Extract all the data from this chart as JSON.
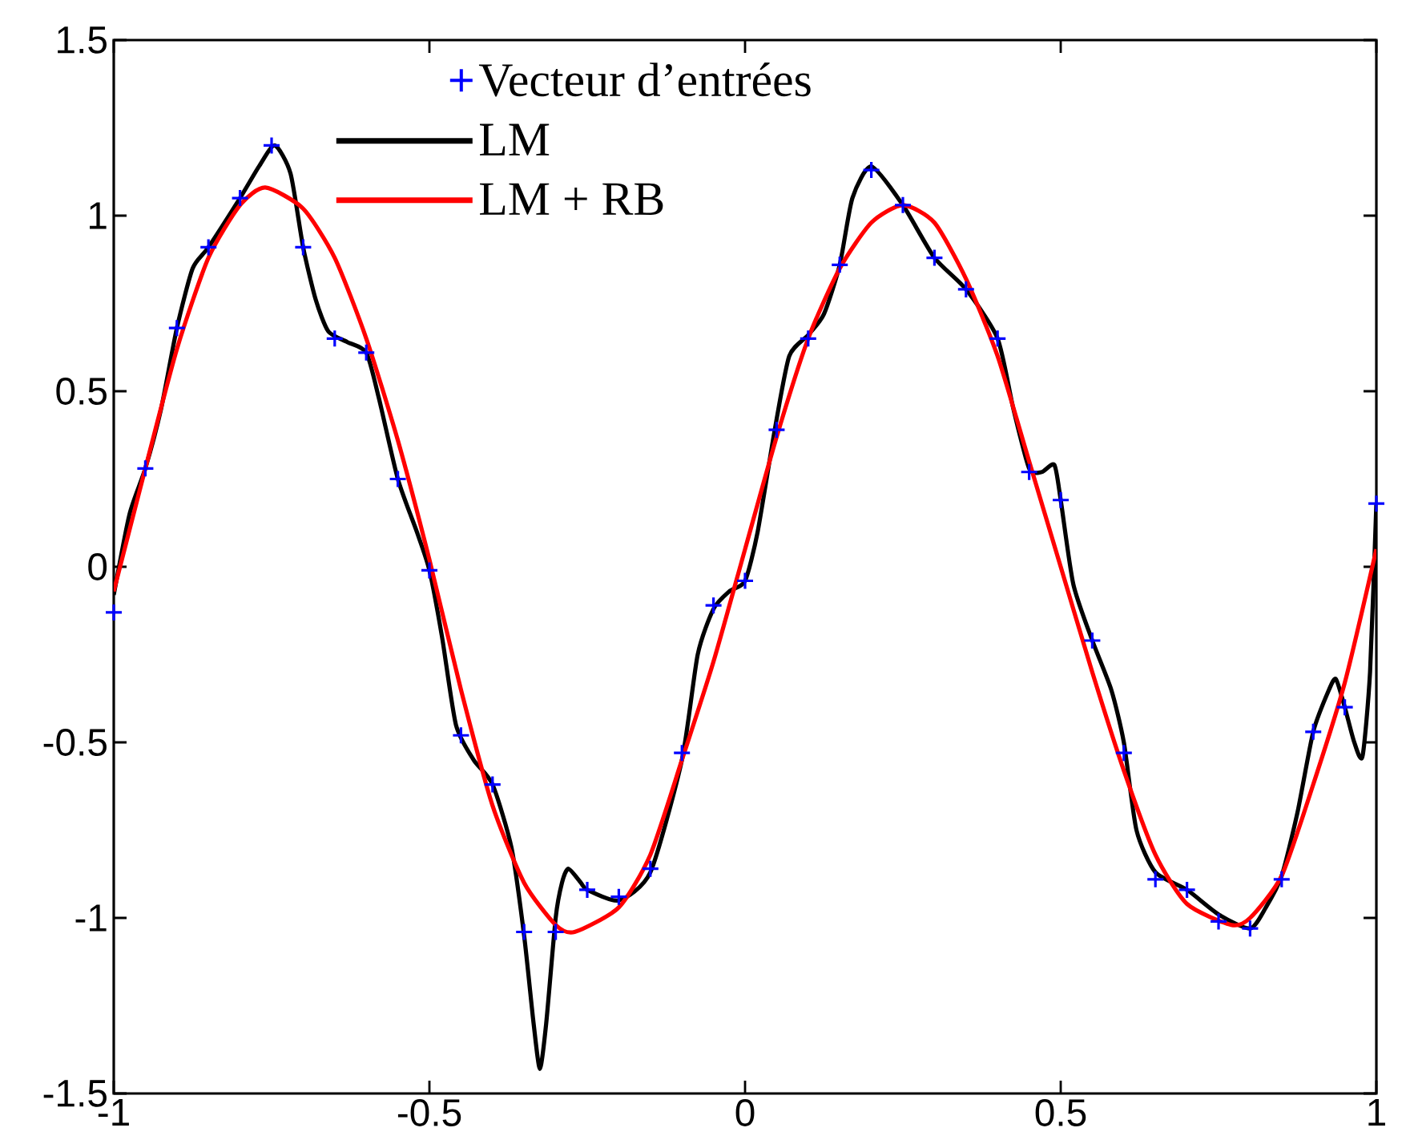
{
  "chart_data": {
    "type": "line",
    "xlim": [
      -1,
      1
    ],
    "ylim": [
      -1.5,
      1.5
    ],
    "xticks": [
      -1,
      -0.5,
      0,
      0.5,
      1
    ],
    "yticks": [
      -1.5,
      -1,
      -0.5,
      0,
      0.5,
      1,
      1.5
    ],
    "legend": "top left",
    "series": [
      {
        "name": "Vecteur d’entrées",
        "type": "scatter",
        "marker": "cross",
        "color": "#0000ff",
        "x": [
          -1,
          -0.95,
          -0.9,
          -0.85,
          -0.8,
          -0.75,
          -0.7,
          -0.65,
          -0.6,
          -0.55,
          -0.5,
          -0.45,
          -0.4,
          -0.35,
          -0.3,
          -0.25,
          -0.2,
          -0.15,
          -0.1,
          -0.05,
          0,
          0.05,
          0.1,
          0.15,
          0.2,
          0.25,
          0.3,
          0.35,
          0.4,
          0.45,
          0.5,
          0.55,
          0.6,
          0.65,
          0.7,
          0.75,
          0.8,
          0.85,
          0.9,
          0.95,
          1
        ],
        "values": [
          -0.13,
          0.28,
          0.68,
          0.91,
          1.05,
          1.2,
          0.91,
          0.65,
          0.61,
          0.25,
          -0.01,
          -0.48,
          -0.62,
          -1.04,
          -1.04,
          -0.92,
          -0.94,
          -0.86,
          -0.53,
          -0.11,
          -0.04,
          0.39,
          0.65,
          0.86,
          1.13,
          1.03,
          0.88,
          0.79,
          0.65,
          0.27,
          0.19,
          -0.21,
          -0.53,
          -0.89,
          -0.92,
          -1.01,
          -1.03,
          -0.89,
          -0.47,
          -0.4,
          0.18
        ]
      },
      {
        "name": "LM",
        "marker": "none",
        "color": "#000000",
        "x": [
          -1,
          -0.975,
          -0.95,
          -0.925,
          -0.9,
          -0.875,
          -0.85,
          -0.8,
          -0.77,
          -0.745,
          -0.72,
          -0.7,
          -0.68,
          -0.66,
          -0.63,
          -0.6,
          -0.58,
          -0.55,
          -0.52,
          -0.5,
          -0.48,
          -0.458,
          -0.43,
          -0.4,
          -0.37,
          -0.35,
          -0.335,
          -0.325,
          -0.315,
          -0.3,
          -0.29,
          -0.28,
          -0.26,
          -0.25,
          -0.2,
          -0.15,
          -0.1,
          -0.075,
          -0.05,
          -0.025,
          0,
          0.02,
          0.047,
          0.07,
          0.1,
          0.125,
          0.15,
          0.17,
          0.2,
          0.25,
          0.3,
          0.35,
          0.4,
          0.425,
          0.45,
          0.47,
          0.49,
          0.5,
          0.52,
          0.55,
          0.58,
          0.6,
          0.62,
          0.65,
          0.7,
          0.75,
          0.8,
          0.825,
          0.85,
          0.875,
          0.9,
          0.925,
          0.936,
          0.95,
          0.965,
          0.978,
          0.99,
          1
        ],
        "values": [
          -0.08,
          0.15,
          0.28,
          0.45,
          0.68,
          0.85,
          0.91,
          1.05,
          1.14,
          1.2,
          1.12,
          0.91,
          0.76,
          0.67,
          0.64,
          0.61,
          0.48,
          0.25,
          0.1,
          -0.01,
          -0.2,
          -0.45,
          -0.55,
          -0.62,
          -0.8,
          -1.05,
          -1.3,
          -1.43,
          -1.3,
          -1.0,
          -0.9,
          -0.86,
          -0.9,
          -0.92,
          -0.95,
          -0.87,
          -0.55,
          -0.25,
          -0.12,
          -0.07,
          -0.04,
          0.1,
          0.39,
          0.6,
          0.66,
          0.72,
          0.86,
          1.05,
          1.14,
          1.03,
          0.88,
          0.79,
          0.65,
          0.45,
          0.28,
          0.27,
          0.29,
          0.19,
          -0.05,
          -0.21,
          -0.35,
          -0.5,
          -0.75,
          -0.87,
          -0.92,
          -0.99,
          -1.03,
          -0.97,
          -0.88,
          -0.7,
          -0.47,
          -0.35,
          -0.32,
          -0.4,
          -0.5,
          -0.54,
          -0.3,
          0.18
        ]
      },
      {
        "name": "LM + RB",
        "marker": "none",
        "color": "#ff0000",
        "x": [
          -1,
          -0.95,
          -0.9,
          -0.85,
          -0.8,
          -0.76,
          -0.7,
          -0.65,
          -0.6,
          -0.55,
          -0.5,
          -0.45,
          -0.4,
          -0.35,
          -0.3,
          -0.27,
          -0.2,
          -0.15,
          -0.1,
          -0.05,
          0,
          0.05,
          0.1,
          0.15,
          0.2,
          0.25,
          0.3,
          0.35,
          0.4,
          0.45,
          0.5,
          0.55,
          0.6,
          0.65,
          0.7,
          0.77,
          0.8,
          0.85,
          0.9,
          0.95,
          1
        ],
        "values": [
          -0.07,
          0.28,
          0.62,
          0.88,
          1.03,
          1.08,
          1.02,
          0.88,
          0.65,
          0.36,
          0.02,
          -0.35,
          -0.68,
          -0.9,
          -1.02,
          -1.04,
          -0.97,
          -0.82,
          -0.55,
          -0.27,
          0.05,
          0.37,
          0.65,
          0.85,
          0.98,
          1.03,
          0.98,
          0.82,
          0.6,
          0.3,
          0.0,
          -0.3,
          -0.58,
          -0.82,
          -0.96,
          -1.02,
          -1.0,
          -0.88,
          -0.62,
          -0.33,
          0.05
        ]
      }
    ]
  }
}
